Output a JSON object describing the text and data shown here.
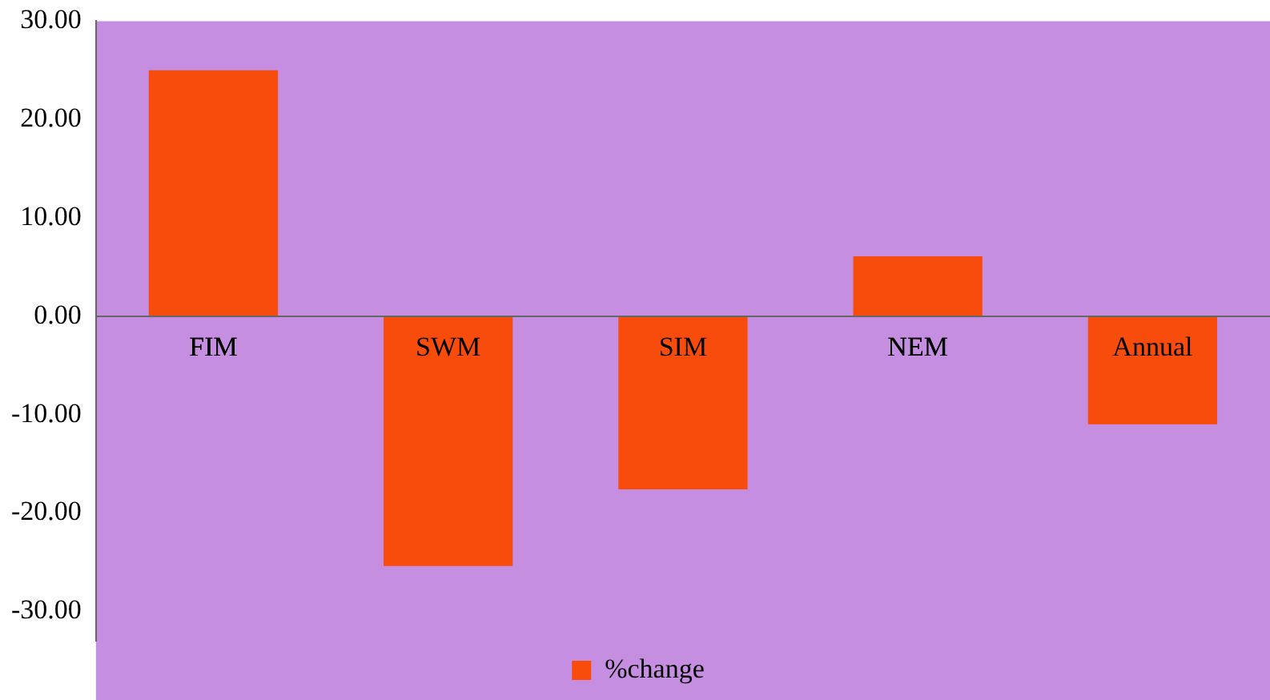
{
  "chart_data": {
    "type": "bar",
    "categories": [
      "FIM",
      "SWM",
      "SIM",
      "NEM",
      "Annual"
    ],
    "series": [
      {
        "name": "%change",
        "color": "#f84c0c",
        "values": [
          25.0,
          -25.4,
          -17.6,
          6.1,
          -11.0
        ]
      }
    ],
    "ylim": [
      -33,
      30
    ],
    "yticks": [
      {
        "value": 30,
        "label": "30.00"
      },
      {
        "value": 20,
        "label": "20.00"
      },
      {
        "value": 10,
        "label": "10.00"
      },
      {
        "value": 0,
        "label": "0.00"
      },
      {
        "value": -10,
        "label": "-10.00"
      },
      {
        "value": -20,
        "label": "-20.00"
      },
      {
        "value": -30,
        "label": "-30.00"
      }
    ],
    "grid": false,
    "legend": "bottom"
  }
}
